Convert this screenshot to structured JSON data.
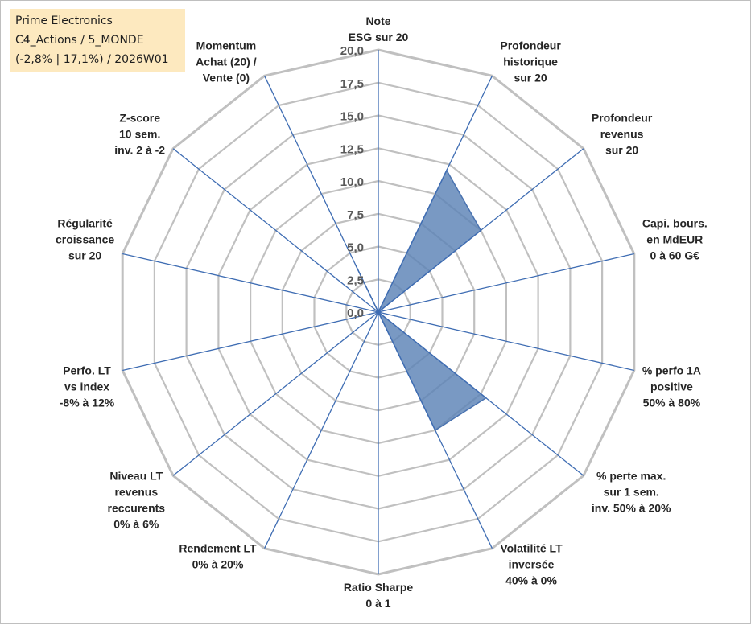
{
  "info": {
    "line1": "Prime Electronics",
    "line2": "C4_Actions / 5_MONDE",
    "line3": "(-2,8% | 17,1%) / 2026W01"
  },
  "chart_data": {
    "type": "radar",
    "scale": {
      "min": 0,
      "max": 20,
      "step": 2.5
    },
    "tick_labels": [
      "0,0",
      "2,5",
      "5,0",
      "7,5",
      "10,0",
      "12,5",
      "15,0",
      "17,5",
      "20,0"
    ],
    "axes": [
      {
        "label": [
          "Note",
          "ESG sur 20"
        ],
        "value": 0
      },
      {
        "label": [
          "Profondeur",
          "historique",
          "sur 20"
        ],
        "value": 12
      },
      {
        "label": [
          "Profondeur",
          "revenus",
          "sur 20"
        ],
        "value": 10
      },
      {
        "label": [
          "Capi. bours.",
          "en MdEUR",
          "0 à 60 G€"
        ],
        "value": 0
      },
      {
        "label": [
          "% perfo 1A",
          "positive",
          "50% à 80%"
        ],
        "value": 0
      },
      {
        "label": [
          "% perte max.",
          "sur 1 sem.",
          "inv. 50% à 20%"
        ],
        "value": 10.5
      },
      {
        "label": [
          "Volatilité LT",
          "inversée",
          "40% à 0%"
        ],
        "value": 10
      },
      {
        "label": [
          "Ratio Sharpe",
          "0 à 1"
        ],
        "value": 0
      },
      {
        "label": [
          "Rendement LT",
          "0% à 20%"
        ],
        "value": 0
      },
      {
        "label": [
          "Niveau LT",
          "revenus",
          "reccurents",
          "0% à 6%"
        ],
        "value": 0
      },
      {
        "label": [
          "Perfo. LT",
          "vs index",
          "-8% à 12%"
        ],
        "value": 0
      },
      {
        "label": [
          "Régularité",
          "croissance",
          "sur 20"
        ],
        "value": 0
      },
      {
        "label": [
          "Z-score",
          "10 sem.",
          "inv. 2 à -2"
        ],
        "value": 0
      },
      {
        "label": [
          "Momentum",
          "Achat (20) /",
          "Vente (0)"
        ],
        "value": 4
      }
    ],
    "colors": {
      "fill": "#5b83b6",
      "stroke": "#4a73b0",
      "grid": "#c0c0c0",
      "spoke": "#3f6db3"
    }
  }
}
